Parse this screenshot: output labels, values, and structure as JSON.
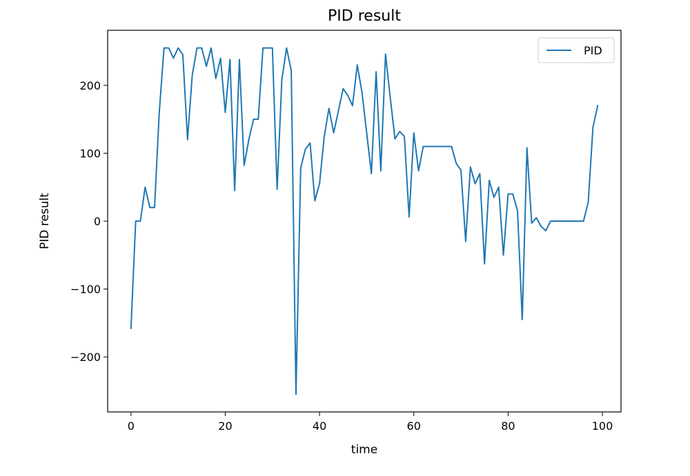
{
  "chart_data": {
    "type": "line",
    "title": "PID result",
    "xlabel": "time",
    "ylabel": "PID result",
    "xlim": [
      -4.95,
      103.95
    ],
    "ylim": [
      -281,
      281
    ],
    "x_ticks": [
      0,
      20,
      40,
      60,
      80,
      100
    ],
    "y_ticks": [
      -200,
      -100,
      0,
      100,
      200
    ],
    "x_tick_labels": [
      "0",
      "20",
      "40",
      "60",
      "80",
      "100"
    ],
    "y_tick_labels": [
      "−200",
      "−100",
      "0",
      "100",
      "200"
    ],
    "grid": false,
    "legend": {
      "position": "top-right",
      "entries": [
        "PID"
      ]
    },
    "series": [
      {
        "name": "PID",
        "color": "#1f77b4",
        "x": [
          0,
          1,
          2,
          3,
          4,
          5,
          6,
          7,
          8,
          9,
          10,
          11,
          12,
          13,
          14,
          15,
          16,
          17,
          18,
          19,
          20,
          21,
          22,
          23,
          24,
          25,
          26,
          27,
          28,
          29,
          30,
          31,
          32,
          33,
          34,
          35,
          36,
          37,
          38,
          39,
          40,
          41,
          42,
          43,
          44,
          45,
          46,
          47,
          48,
          49,
          50,
          51,
          52,
          53,
          54,
          55,
          56,
          57,
          58,
          59,
          60,
          61,
          62,
          63,
          64,
          65,
          66,
          67,
          68,
          69,
          70,
          71,
          72,
          73,
          74,
          75,
          76,
          77,
          78,
          79,
          80,
          81,
          82,
          83,
          84,
          85,
          86,
          87,
          88,
          89,
          90,
          91,
          92,
          93,
          94,
          95,
          96,
          97,
          98,
          99
        ],
        "values": [
          -158,
          0,
          0,
          50,
          20,
          20,
          160,
          255,
          255,
          240,
          255,
          245,
          120,
          215,
          255,
          255,
          228,
          255,
          210,
          240,
          160,
          238,
          45,
          238,
          82,
          120,
          150,
          150,
          255,
          255,
          255,
          47,
          208,
          255,
          222,
          -255,
          78,
          106,
          115,
          30,
          55,
          125,
          166,
          130,
          162,
          195,
          185,
          170,
          230,
          190,
          130,
          70,
          220,
          74,
          246,
          182,
          121,
          132,
          125,
          6,
          130,
          74,
          110,
          110,
          110,
          110,
          110,
          110,
          110,
          85,
          75,
          -30,
          80,
          55,
          70,
          -63,
          60,
          35,
          50,
          -50,
          40,
          40,
          15,
          -145,
          108,
          -3,
          5,
          -8,
          -14,
          0,
          0,
          0,
          0,
          0,
          0,
          0,
          0,
          28,
          138,
          170
        ]
      }
    ]
  }
}
